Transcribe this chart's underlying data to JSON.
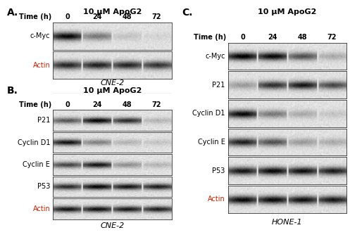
{
  "background_color": "#ffffff",
  "actin_red_color": "#cc2200",
  "panel_A": {
    "label": "A.",
    "treatment": "10 μM ApoG2",
    "time_points": [
      "0",
      "24",
      "48",
      "72"
    ],
    "rows": [
      "c-Myc",
      "Actin"
    ],
    "cell_line": "CNE-2",
    "blot_intensities": {
      "c-Myc": [
        0.88,
        0.42,
        0.12,
        0.06
      ],
      "Actin": [
        0.75,
        0.78,
        0.76,
        0.7
      ]
    }
  },
  "panel_B": {
    "label": "B.",
    "treatment": "10 μM ApoG2",
    "time_points": [
      "0",
      "24",
      "48",
      "72"
    ],
    "rows": [
      "P21",
      "Cyclin D1",
      "Cyclin E",
      "P53",
      "Actin"
    ],
    "cell_line": "CNE-2",
    "blot_intensities": {
      "P21": [
        0.55,
        0.88,
        0.72,
        0.18
      ],
      "Cyclin D1": [
        0.82,
        0.38,
        0.18,
        0.12
      ],
      "Cyclin E": [
        0.62,
        0.82,
        0.32,
        0.18
      ],
      "P53": [
        0.72,
        0.88,
        0.82,
        0.78
      ],
      "Actin": [
        0.82,
        0.84,
        0.8,
        0.78
      ]
    }
  },
  "panel_C": {
    "label": "C.",
    "treatment": "10 μM ApoG2",
    "time_points": [
      "0",
      "24",
      "48",
      "72"
    ],
    "rows": [
      "c-Myc",
      "P21",
      "Cyclin D1",
      "Cyclin E",
      "P53",
      "Actin"
    ],
    "cell_line": "HONE-1",
    "blot_intensities": {
      "c-Myc": [
        0.92,
        0.88,
        0.58,
        0.22
      ],
      "P21": [
        0.28,
        0.72,
        0.82,
        0.62
      ],
      "Cyclin D1": [
        0.88,
        0.42,
        0.22,
        0.12
      ],
      "Cyclin E": [
        0.78,
        0.58,
        0.28,
        0.22
      ],
      "P53": [
        0.82,
        0.88,
        0.85,
        0.8
      ],
      "Actin": [
        0.88,
        0.88,
        0.85,
        0.82
      ]
    }
  },
  "label_fontsize": 10,
  "header_fontsize": 8,
  "row_label_fontsize": 7,
  "time_fontsize": 7,
  "cellline_fontsize": 8
}
